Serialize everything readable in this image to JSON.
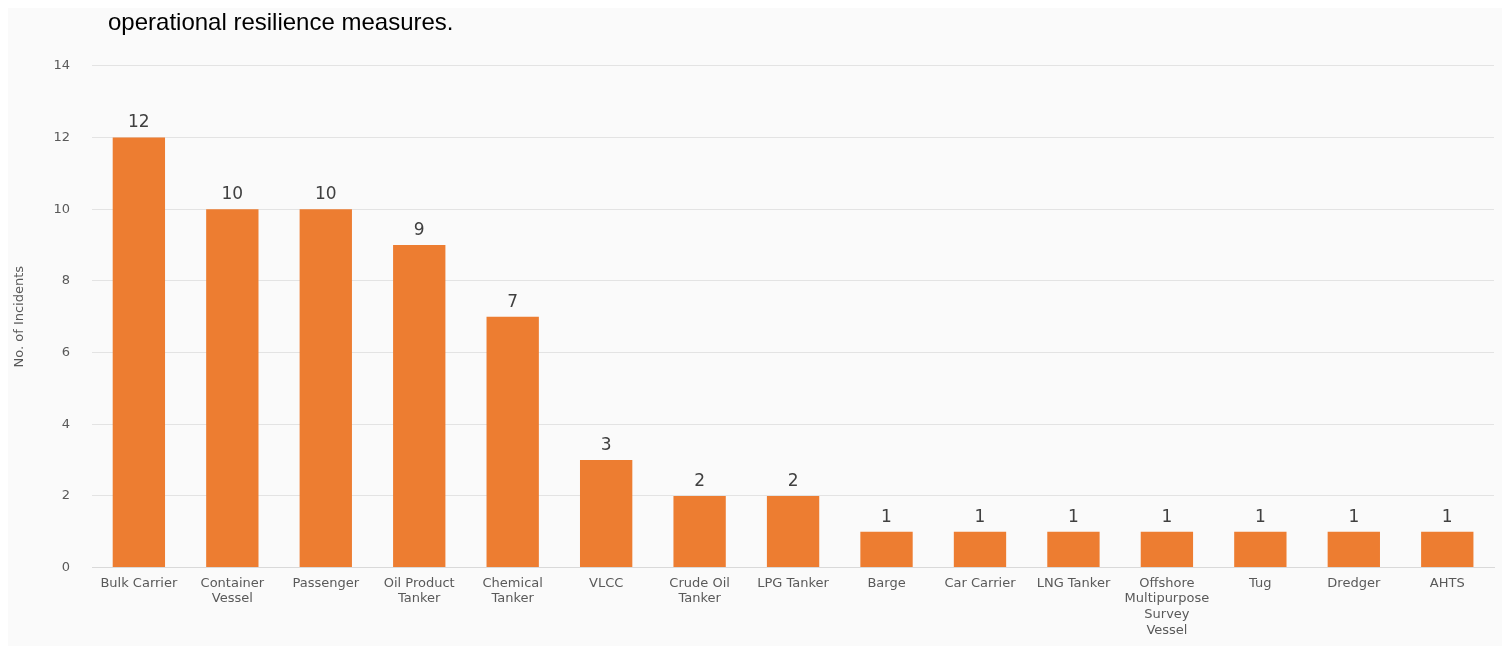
{
  "chart_data": {
    "type": "bar",
    "ylabel": "No. of Incidents",
    "annotations": [
      "operational resilience measures."
    ],
    "categories": [
      "Bulk Carrier",
      "Container Vessel",
      "Passenger",
      "Oil Product Tanker",
      "Chemical Tanker",
      "VLCC",
      "Crude Oil Tanker",
      "LPG Tanker",
      "Barge",
      "Car Carrier",
      "LNG Tanker",
      "Offshore Multipurpose Survey Vessel",
      "Tug",
      "Dredger",
      "AHTS"
    ],
    "values": [
      12,
      10,
      10,
      9,
      7,
      3,
      2,
      2,
      1,
      1,
      1,
      1,
      1,
      1,
      1
    ],
    "color": "#ed7d31",
    "ylim": [
      0,
      14
    ],
    "yticks": [
      0,
      2,
      4,
      6,
      8,
      10,
      12,
      14
    ],
    "grid": "y",
    "data_labels": true,
    "legend": false
  }
}
